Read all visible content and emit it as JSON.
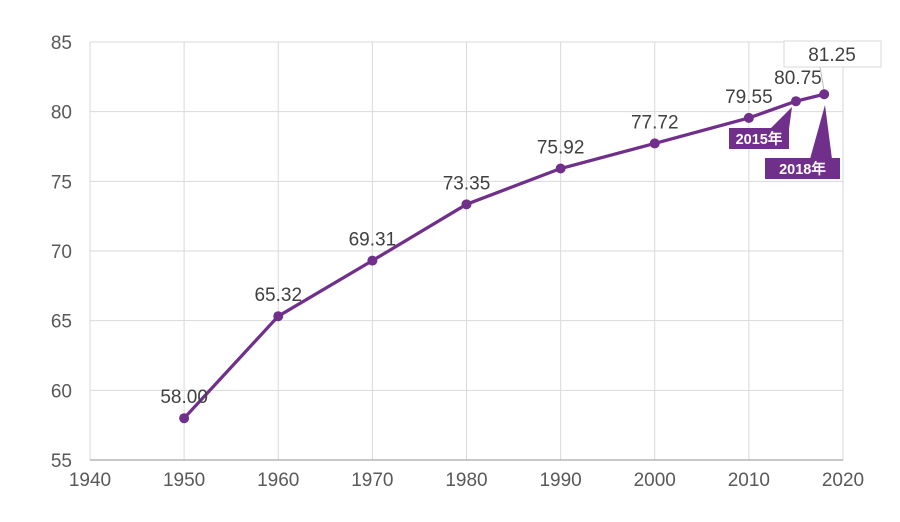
{
  "page": {
    "background": "#FFFFFF",
    "title": ""
  },
  "chart_data": {
    "type": "line",
    "title": "",
    "xlabel": "",
    "ylabel": "",
    "xlim": [
      1940,
      2020
    ],
    "ylim": [
      55,
      85
    ],
    "grid": "on",
    "legend": "none",
    "x_ticks": [
      "1940",
      "1950",
      "1960",
      "1970",
      "1980",
      "1990",
      "2000",
      "2010",
      "2020"
    ],
    "x_tick_values": [
      1940,
      1950,
      1960,
      1970,
      1980,
      1990,
      2000,
      2010,
      2020
    ],
    "y_ticks": [
      "55",
      "60",
      "65",
      "70",
      "75",
      "80",
      "85"
    ],
    "y_tick_values": [
      55,
      60,
      65,
      70,
      75,
      80,
      85
    ],
    "series": [
      {
        "name": "line-series",
        "x": [
          1950,
          1960,
          1970,
          1980,
          1990,
          2000,
          2010,
          2015,
          2018
        ],
        "values": [
          58.0,
          65.32,
          69.31,
          73.35,
          75.92,
          77.72,
          79.55,
          80.75,
          81.25
        ],
        "point_labels": [
          "58.00",
          "65.32",
          "69.31",
          "73.35",
          "75.92",
          "77.72",
          "79.55",
          "80.75",
          "81.25"
        ]
      }
    ],
    "callouts": [
      {
        "label": "2015年",
        "x": 2015,
        "y": 80.75
      },
      {
        "label": "2018年",
        "x": 2018,
        "y": 81.25
      }
    ],
    "colors": {
      "line": "#702F8A",
      "marker": "#702F8A",
      "callout_bg": "#702F8A",
      "callout_text": "#FFFFFF",
      "grid": "#D9D9D9",
      "axis_line": "#A6A6A6",
      "tick_label": "#595959",
      "data_label": "#404040",
      "leader_line": "#BFBFBF",
      "moved_label_fill": "#FFFFFF",
      "moved_label_border": "#D9D9D9"
    }
  }
}
